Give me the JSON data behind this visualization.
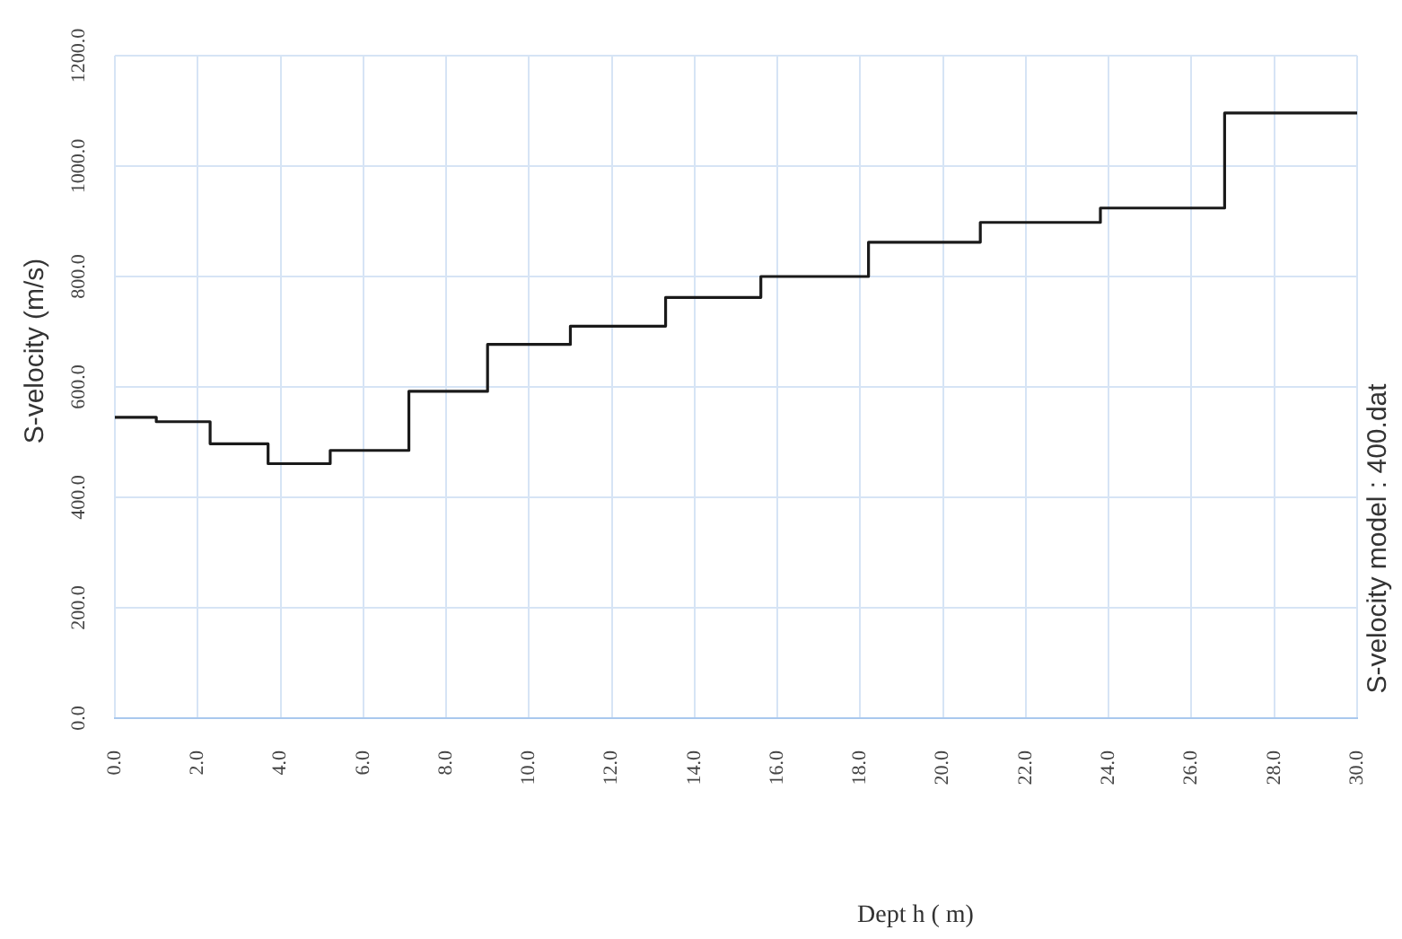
{
  "chart_data": {
    "type": "step",
    "xlabel": "Dept h ( m)",
    "ylabel": "S-velocity (m/s)",
    "annotations": [
      "S-velocity model : 400.dat"
    ],
    "x": [
      0,
      1.0,
      2.3,
      3.7,
      5.2,
      7.1,
      9.0,
      11.0,
      13.3,
      15.6,
      18.2,
      20.9,
      23.8,
      26.8,
      30
    ],
    "series": [
      {
        "color": "#1a1a1a",
        "values": [
          545,
          537,
          497,
          461,
          485,
          592,
          677,
          710,
          762,
          800,
          862,
          898,
          924,
          1096,
          1096
        ]
      }
    ],
    "xlim": [
      0,
      30
    ],
    "xticks": [
      {
        "value": 0,
        "label": "0.0"
      },
      {
        "value": 2,
        "label": "2.0"
      },
      {
        "value": 4,
        "label": "4.0"
      },
      {
        "value": 6,
        "label": "6.0"
      },
      {
        "value": 8,
        "label": "8.0"
      },
      {
        "value": 10,
        "label": "10.0"
      },
      {
        "value": 12,
        "label": "12.0"
      },
      {
        "value": 14,
        "label": "14.0"
      },
      {
        "value": 16,
        "label": "16.0"
      },
      {
        "value": 18,
        "label": "18.0"
      },
      {
        "value": 20,
        "label": "20.0"
      },
      {
        "value": 22,
        "label": "22.0"
      },
      {
        "value": 24,
        "label": "24.0"
      },
      {
        "value": 26,
        "label": "26.0"
      },
      {
        "value": 28,
        "label": "28.0"
      },
      {
        "value": 30,
        "label": "30.0"
      }
    ],
    "ylim": [
      0,
      1200
    ],
    "yticks": [
      {
        "value": 0,
        "label": "0.0"
      },
      {
        "value": 200,
        "label": "200.0"
      },
      {
        "value": 400,
        "label": "400.0"
      },
      {
        "value": 600,
        "label": "600.0"
      },
      {
        "value": 800,
        "label": "800.0"
      },
      {
        "value": 1000,
        "label": "1000.0"
      },
      {
        "value": 1200,
        "label": "1200.0"
      }
    ],
    "grid": true,
    "line_style": "solid",
    "marker": "none",
    "legend": false
  }
}
